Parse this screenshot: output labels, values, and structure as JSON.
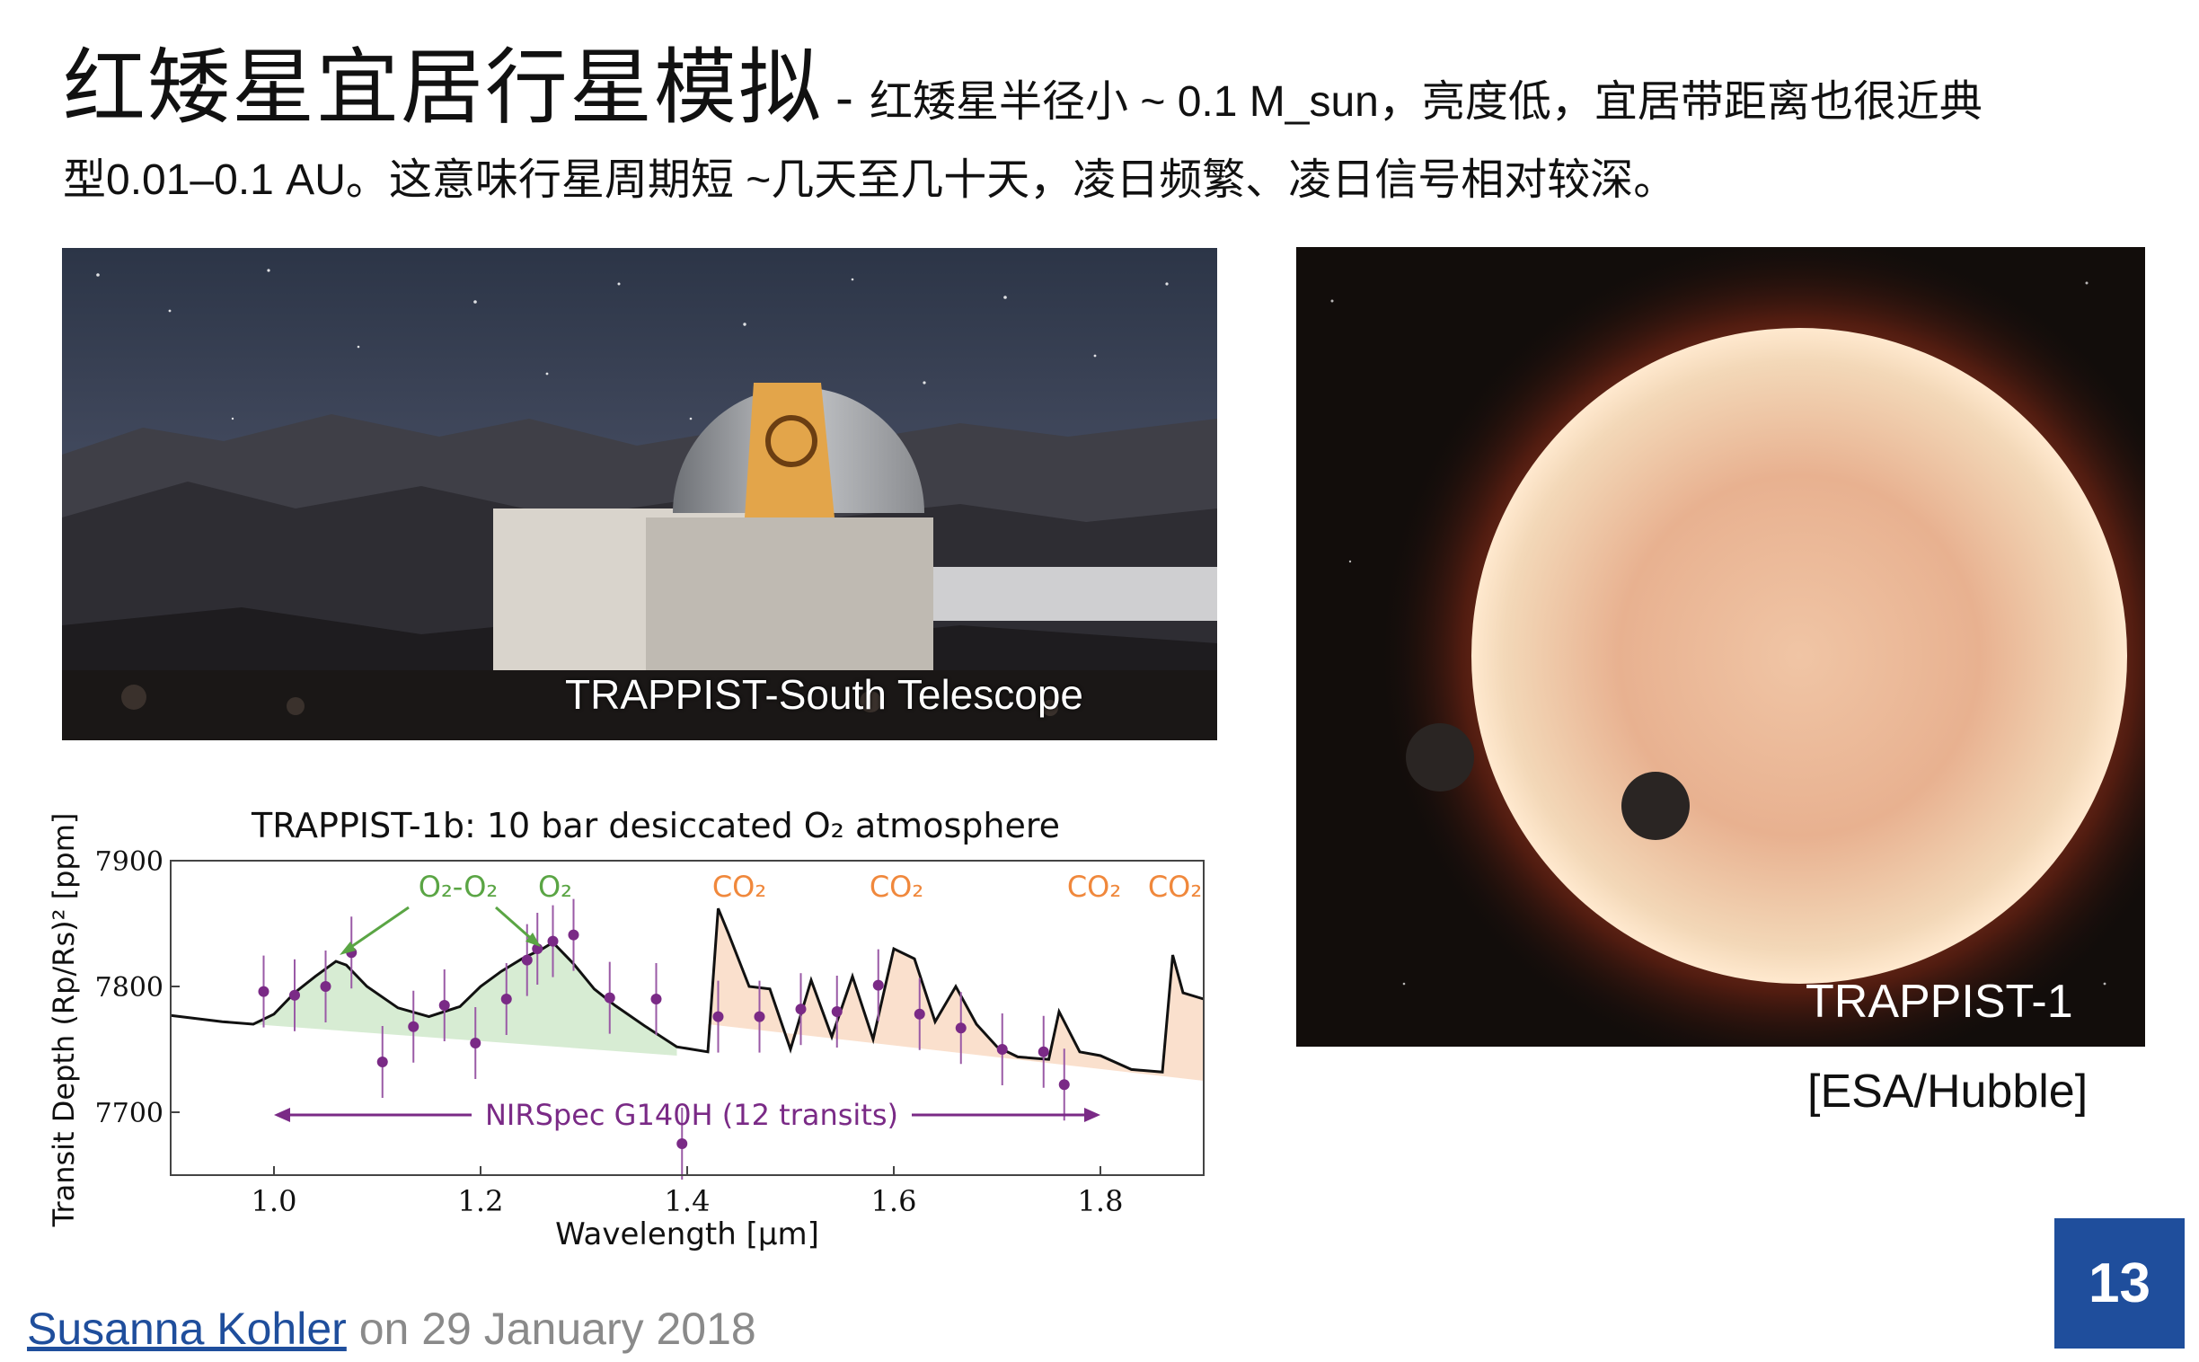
{
  "title": {
    "main": "红矮星宜居行星模拟",
    "dash": "-",
    "desc_line1": "红矮星半径小 ~ 0.1 M_sun，亮度低，宜居带距离也很近典",
    "desc_line2": "型0.01–0.1 AU。这意味行星周期短 ~几天至几十天，凌日频繁、凌日信号相对较深。"
  },
  "images": {
    "telescope_caption": "TRAPPIST-South Telescope",
    "trappist_caption": "TRAPPIST-1",
    "credit": "[ESA/Hubble]"
  },
  "footer": {
    "author": "Susanna Kohler",
    "date_text": " on 29 January 2018"
  },
  "page_number": "13",
  "colors": {
    "accent_blue": "#1f4e9c",
    "green_label": "#5aa544",
    "orange_label": "#f0883c",
    "purple_points": "#7a2a86"
  },
  "chart_data": {
    "type": "line",
    "title": "TRAPPIST-1b: 10 bar desiccated O₂ atmosphere",
    "xlabel": "Wavelength [μm]",
    "ylabel": "Transit Depth (Rp/Rs)² [ppm]",
    "xlim": [
      0.9,
      1.9
    ],
    "ylim": [
      7650,
      7900
    ],
    "x_ticks": [
      "1.0",
      "1.2",
      "1.4",
      "1.6",
      "1.8"
    ],
    "y_ticks": [
      "7700",
      "7800",
      "7900"
    ],
    "annotations": {
      "o2o2": "O₂-O₂",
      "o2": "O₂",
      "co2_1": "CO₂",
      "co2_2": "CO₂",
      "co2_3": "CO₂",
      "co2_4": "CO₂",
      "range_label": "NIRSpec G140H (12 transits)"
    },
    "model": {
      "x": [
        0.9,
        0.95,
        0.98,
        1.0,
        1.02,
        1.04,
        1.06,
        1.07,
        1.09,
        1.12,
        1.15,
        1.18,
        1.2,
        1.22,
        1.24,
        1.26,
        1.27,
        1.29,
        1.31,
        1.33,
        1.36,
        1.39,
        1.42,
        1.43,
        1.44,
        1.46,
        1.48,
        1.5,
        1.52,
        1.54,
        1.56,
        1.58,
        1.6,
        1.62,
        1.64,
        1.66,
        1.68,
        1.7,
        1.72,
        1.75,
        1.76,
        1.78,
        1.8,
        1.83,
        1.86,
        1.87,
        1.88,
        1.9
      ],
      "y": [
        7777,
        7772,
        7770,
        7778,
        7795,
        7808,
        7820,
        7817,
        7800,
        7783,
        7776,
        7784,
        7800,
        7812,
        7822,
        7830,
        7835,
        7818,
        7798,
        7785,
        7768,
        7752,
        7748,
        7862,
        7842,
        7800,
        7798,
        7750,
        7805,
        7760,
        7808,
        7758,
        7830,
        7822,
        7772,
        7800,
        7770,
        7752,
        7744,
        7742,
        7780,
        7748,
        7745,
        7734,
        7732,
        7825,
        7795,
        7790
      ]
    },
    "observed": {
      "x": [
        0.99,
        1.02,
        1.05,
        1.075,
        1.105,
        1.135,
        1.165,
        1.195,
        1.225,
        1.245,
        1.255,
        1.27,
        1.29,
        1.325,
        1.37,
        1.395,
        1.43,
        1.47,
        1.51,
        1.545,
        1.585,
        1.625,
        1.665,
        1.705,
        1.745,
        1.765
      ],
      "y": [
        7796,
        7793,
        7800,
        7827,
        7740,
        7768,
        7785,
        7755,
        7790,
        7821,
        7830,
        7836,
        7841,
        7791,
        7790,
        7675,
        7776,
        7776,
        7782,
        7780,
        7801,
        7778,
        7767,
        7750,
        7748,
        7722
      ]
    },
    "green_fill_range": [
      0.98,
      1.41
    ],
    "orange_fill_range": [
      1.42,
      1.9
    ],
    "range_arrow": [
      1.0,
      1.8
    ]
  }
}
